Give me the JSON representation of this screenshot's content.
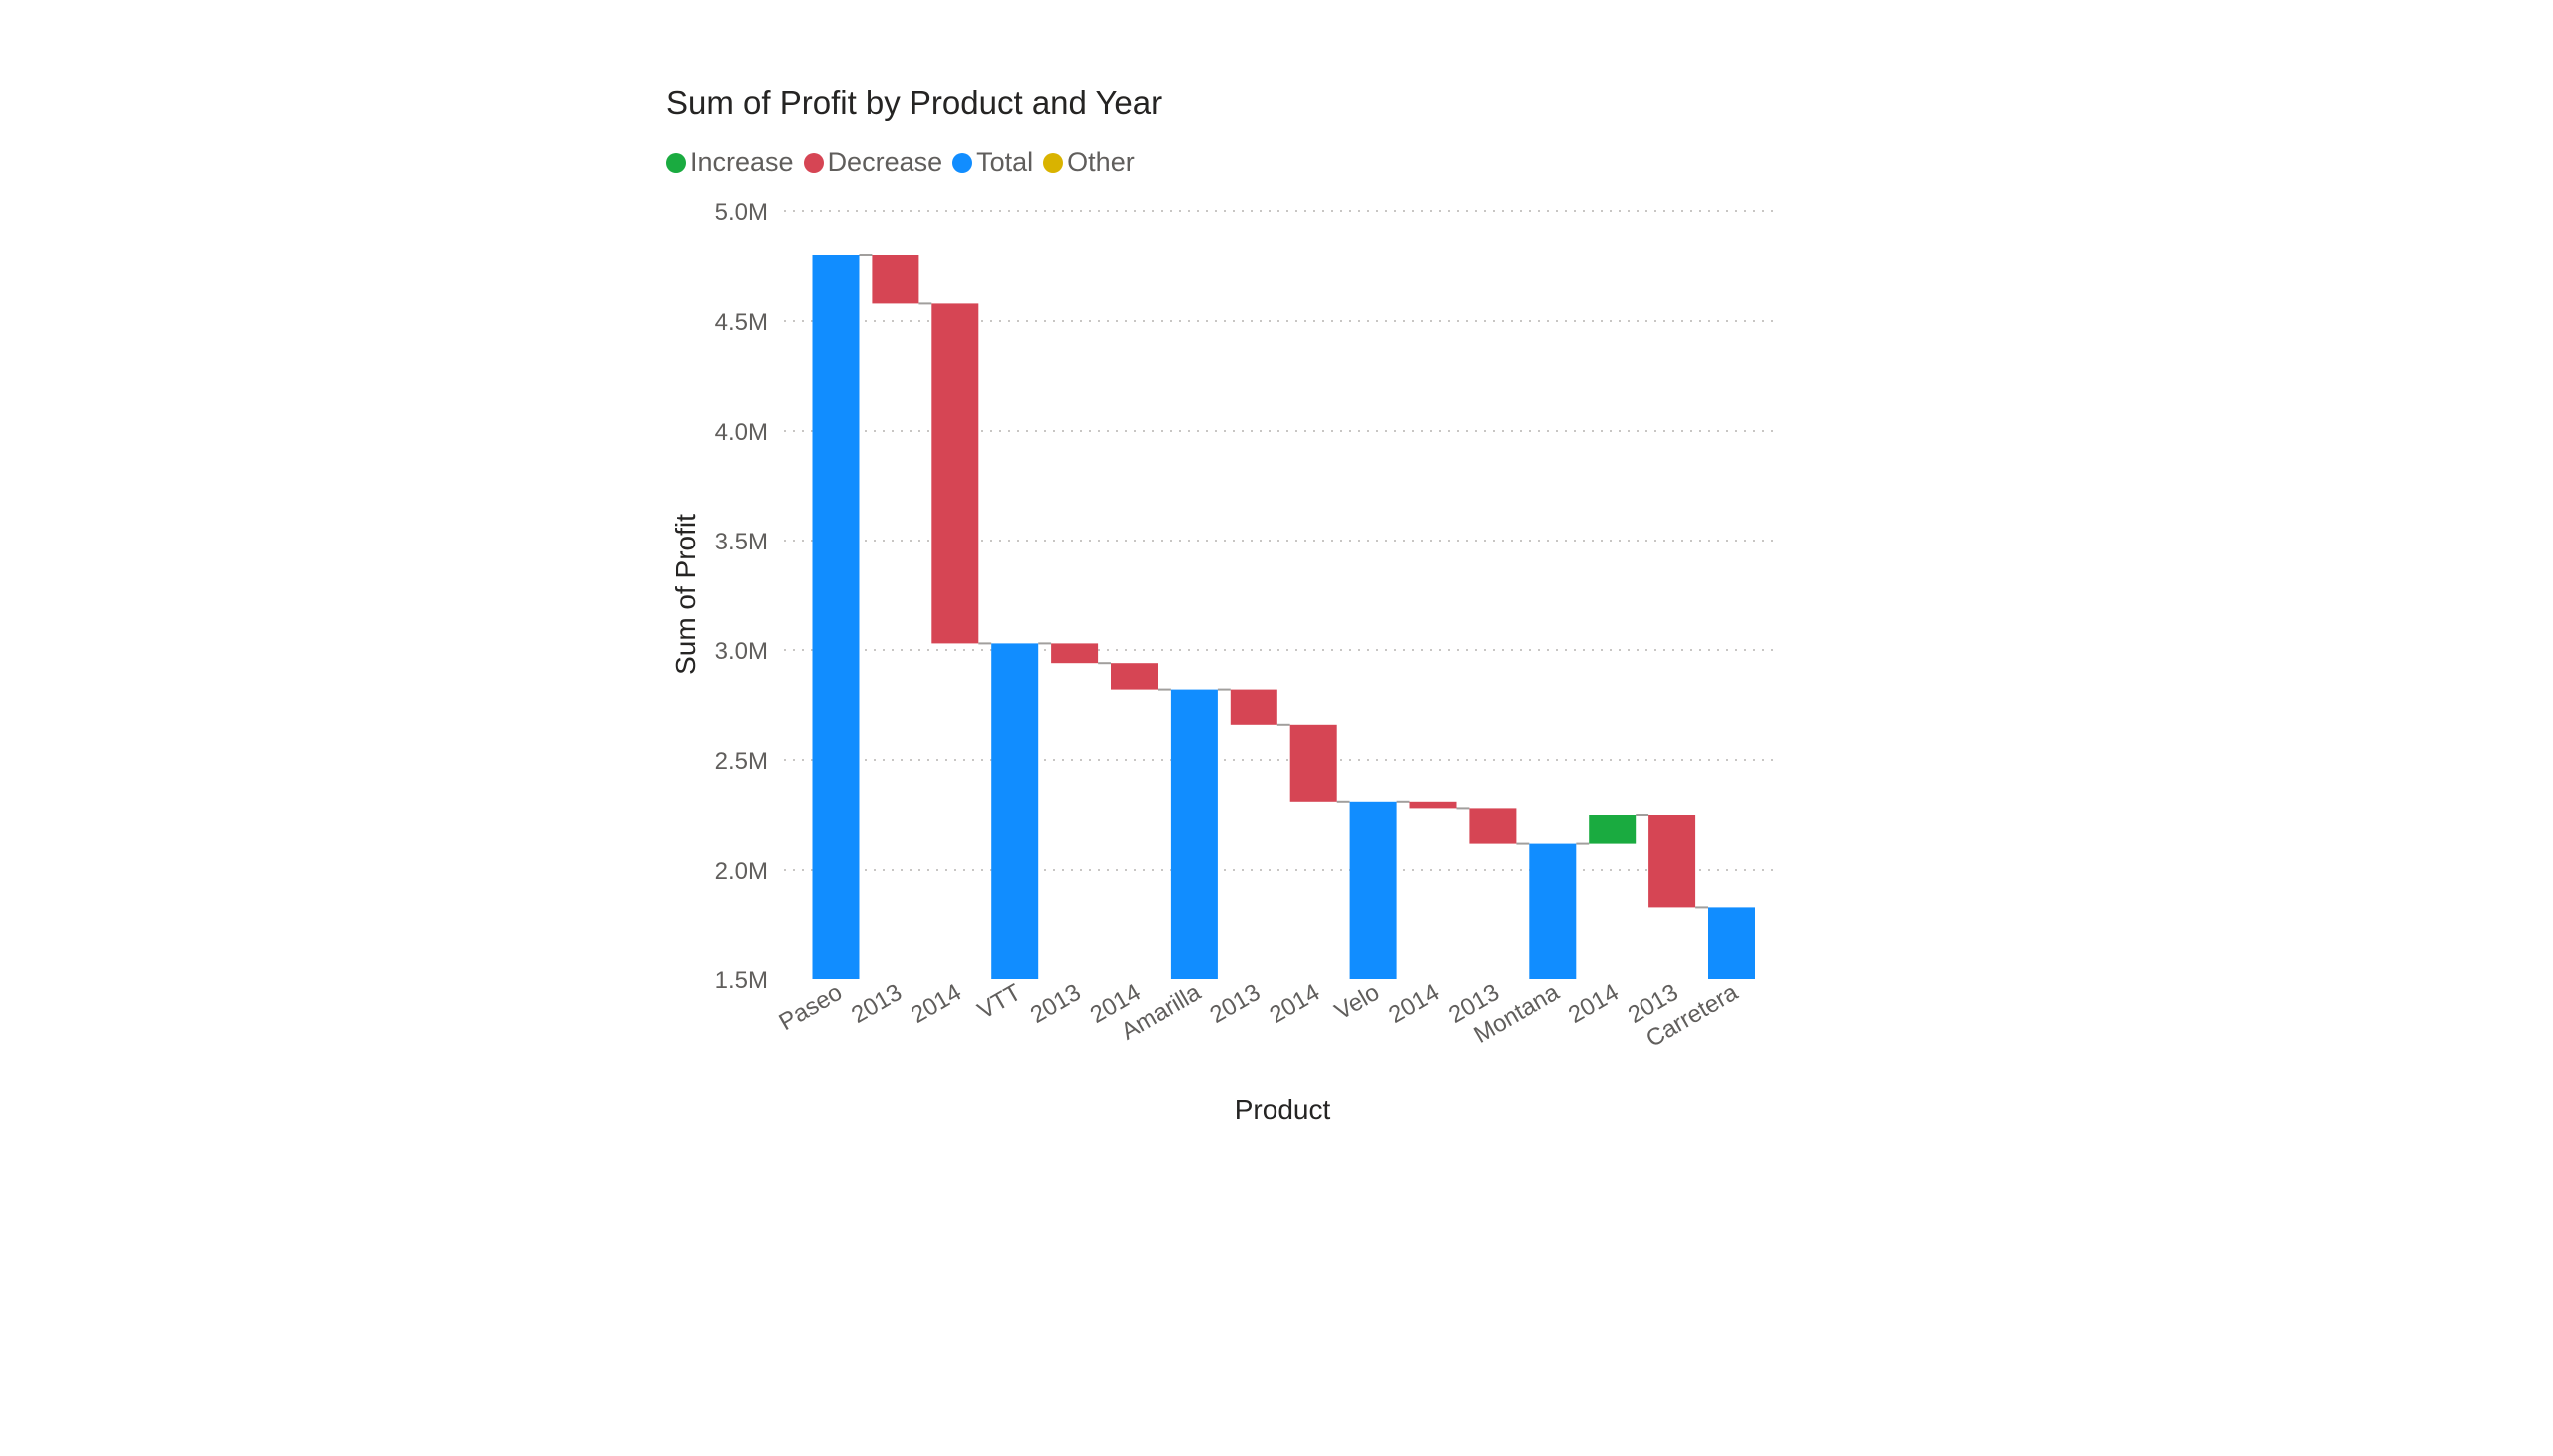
{
  "chart_data": {
    "type": "waterfall",
    "title": "Sum of Profit by Product and Year",
    "xlabel": "Product",
    "ylabel": "Sum of Profit",
    "ylim": [
      1500000,
      5000000
    ],
    "yticks": [
      "1.5M",
      "2.0M",
      "2.5M",
      "3.0M",
      "3.5M",
      "4.0M",
      "4.5M",
      "5.0M"
    ],
    "ytick_values": [
      1500000,
      2000000,
      2500000,
      3000000,
      3500000,
      4000000,
      4500000,
      5000000
    ],
    "grid": true,
    "legend": [
      {
        "name": "Increase",
        "color": "#1aab40"
      },
      {
        "name": "Decrease",
        "color": "#d64554"
      },
      {
        "name": "Total",
        "color": "#118dff"
      },
      {
        "name": "Other",
        "color": "#d9b300"
      }
    ],
    "bars": [
      {
        "label": "Paseo",
        "kind": "total",
        "start": 0,
        "end": 4800000
      },
      {
        "label": "2013",
        "kind": "decrease",
        "start": 4800000,
        "end": 4580000
      },
      {
        "label": "2014",
        "kind": "decrease",
        "start": 4580000,
        "end": 3030000
      },
      {
        "label": "VTT",
        "kind": "total",
        "start": 0,
        "end": 3030000
      },
      {
        "label": "2013",
        "kind": "decrease",
        "start": 3030000,
        "end": 2940000
      },
      {
        "label": "2014",
        "kind": "decrease",
        "start": 2940000,
        "end": 2820000
      },
      {
        "label": "Amarilla",
        "kind": "total",
        "start": 0,
        "end": 2820000
      },
      {
        "label": "2013",
        "kind": "decrease",
        "start": 2820000,
        "end": 2660000
      },
      {
        "label": "2014",
        "kind": "decrease",
        "start": 2660000,
        "end": 2310000
      },
      {
        "label": "Velo",
        "kind": "total",
        "start": 0,
        "end": 2310000
      },
      {
        "label": "2014",
        "kind": "decrease",
        "start": 2310000,
        "end": 2280000
      },
      {
        "label": "2013",
        "kind": "decrease",
        "start": 2280000,
        "end": 2120000
      },
      {
        "label": "Montana",
        "kind": "total",
        "start": 0,
        "end": 2120000
      },
      {
        "label": "2014",
        "kind": "increase",
        "start": 2120000,
        "end": 2250000
      },
      {
        "label": "2013",
        "kind": "decrease",
        "start": 2250000,
        "end": 1830000
      },
      {
        "label": "Carretera",
        "kind": "total",
        "start": 0,
        "end": 1830000
      }
    ]
  },
  "colors": {
    "increase": "#1aab40",
    "decrease": "#d64554",
    "total": "#118dff",
    "other": "#d9b300",
    "gridline": "#c8c6c4",
    "tick_text": "#605e5c",
    "axis_title": "#252423",
    "connector": "#a19f9d"
  }
}
